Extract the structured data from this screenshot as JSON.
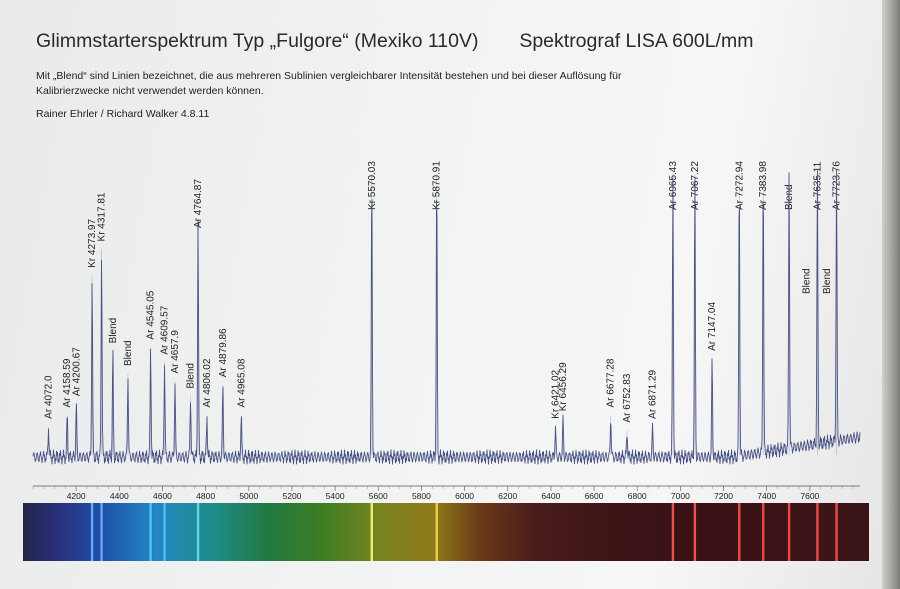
{
  "header": {
    "title": "Glimmstarterspektrum Typ „Fulgore“ (Mexiko 110V)",
    "spectrograph": "Spektrograf LISA 600L/mm",
    "note_line1": "Mit „Blend“ sind Linien bezeichnet, die aus mehreren Sublinien vergleichbarer Intensität bestehen und bei dieser Auflösung für",
    "note_line2": "Kalibrierzwecke nicht verwendet werden können.",
    "authors": "Rainer Ehrler / Richard Walker  4.8.11"
  },
  "chart_data": {
    "type": "line",
    "title": "",
    "xlabel": "",
    "ylabel": "",
    "xlim": [
      4000,
      7800
    ],
    "x_ticks": [
      4200,
      4400,
      4600,
      4800,
      5000,
      5200,
      5400,
      5600,
      5800,
      6000,
      6200,
      6400,
      6600,
      6800,
      7000,
      7200,
      7400,
      7600
    ],
    "grid": false,
    "legend": "none",
    "line_color": "#4a5385",
    "baseline": 0.03,
    "peaks": [
      {
        "x": 4072.0,
        "y": 0.08
      },
      {
        "x": 4158.59,
        "y": 0.11
      },
      {
        "x": 4200.67,
        "y": 0.14
      },
      {
        "x": 4273.97,
        "y": 0.48
      },
      {
        "x": 4317.81,
        "y": 0.55
      },
      {
        "x": 4370,
        "y": 0.28
      },
      {
        "x": 4440,
        "y": 0.22
      },
      {
        "x": 4545.05,
        "y": 0.29
      },
      {
        "x": 4609.57,
        "y": 0.25
      },
      {
        "x": 4657.9,
        "y": 0.2
      },
      {
        "x": 4730,
        "y": 0.16
      },
      {
        "x": 4764.87,
        "y": 0.63
      },
      {
        "x": 4806.02,
        "y": 0.11
      },
      {
        "x": 4879.86,
        "y": 0.19
      },
      {
        "x": 4965.08,
        "y": 0.11
      },
      {
        "x": 5570.03,
        "y": 0.75
      },
      {
        "x": 5870.91,
        "y": 0.75
      },
      {
        "x": 6421.02,
        "y": 0.08
      },
      {
        "x": 6456.29,
        "y": 0.1
      },
      {
        "x": 6677.28,
        "y": 0.11
      },
      {
        "x": 6752.83,
        "y": 0.07
      },
      {
        "x": 6871.29,
        "y": 0.08
      },
      {
        "x": 6965.43,
        "y": 0.75
      },
      {
        "x": 7067.22,
        "y": 0.75
      },
      {
        "x": 7147.04,
        "y": 0.26
      },
      {
        "x": 7272.94,
        "y": 0.75
      },
      {
        "x": 7383.98,
        "y": 0.75
      },
      {
        "x": 7503.87,
        "y": 0.75
      },
      {
        "x": 7635.11,
        "y": 0.75
      },
      {
        "x": 7723.76,
        "y": 0.75
      }
    ],
    "annotations": [
      {
        "text": "Ar 4072.0",
        "x": 4072.0
      },
      {
        "text": "Ar 4158.59",
        "x": 4158.59
      },
      {
        "text": "Ar 4200.67",
        "x": 4200.67
      },
      {
        "text": "Kr 4273.97",
        "x": 4273.97
      },
      {
        "text": "Kr 4317.81",
        "x": 4317.81
      },
      {
        "text": "Blend",
        "x": 4370
      },
      {
        "text": "Blend",
        "x": 4440
      },
      {
        "text": "Ar 4545.05",
        "x": 4545.05
      },
      {
        "text": "Ar 4609.57",
        "x": 4609.57
      },
      {
        "text": "Ar 4657.9",
        "x": 4657.9
      },
      {
        "text": "Blend",
        "x": 4730
      },
      {
        "text": "Ar 4764.87",
        "x": 4764.87
      },
      {
        "text": "Ar 4806.02",
        "x": 4806.02
      },
      {
        "text": "Ar 4879.86",
        "x": 4879.86
      },
      {
        "text": "Ar 4965.08",
        "x": 4965.08
      },
      {
        "text": "Kr 5570.03",
        "x": 5570.03
      },
      {
        "text": "Kr 5870.91",
        "x": 5870.91
      },
      {
        "text": "Kr 6421.02",
        "x": 6421.02
      },
      {
        "text": "Kr 6456.29",
        "x": 6456.29
      },
      {
        "text": "Ar 6677.28",
        "x": 6677.28
      },
      {
        "text": "Ar 6752.83",
        "x": 6752.83
      },
      {
        "text": "Ar 6871.29",
        "x": 6871.29
      },
      {
        "text": "Ar 6965.43",
        "x": 6965.43
      },
      {
        "text": "Ar 7067.22",
        "x": 7067.22
      },
      {
        "text": "Ar 7147.04",
        "x": 7147.04
      },
      {
        "text": "Ar 7272.94",
        "x": 7272.94
      },
      {
        "text": "Ar 7383.98",
        "x": 7383.98
      },
      {
        "text": "Blend",
        "x": 7503.87
      },
      {
        "text": "Blend",
        "x": 7585
      },
      {
        "text": "Ar 7635.11",
        "x": 7635.11
      },
      {
        "text": "Blend",
        "x": 7680
      },
      {
        "text": "Ar 7723.76",
        "x": 7723.76
      }
    ],
    "color_strip": {
      "stops": [
        {
          "x": 4000,
          "color": "#22254a"
        },
        {
          "x": 4150,
          "color": "#2a2f7a"
        },
        {
          "x": 4350,
          "color": "#1f4fa8"
        },
        {
          "x": 4600,
          "color": "#2388c4"
        },
        {
          "x": 4850,
          "color": "#1f8b8a"
        },
        {
          "x": 5100,
          "color": "#1f7a42"
        },
        {
          "x": 5350,
          "color": "#3f7d22"
        },
        {
          "x": 5600,
          "color": "#7a8420"
        },
        {
          "x": 5850,
          "color": "#8e7a18"
        },
        {
          "x": 6050,
          "color": "#6a3a18"
        },
        {
          "x": 6300,
          "color": "#4a1c1c"
        },
        {
          "x": 6700,
          "color": "#3c1316"
        },
        {
          "x": 7100,
          "color": "#3a1216"
        },
        {
          "x": 7500,
          "color": "#3c1418"
        },
        {
          "x": 7800,
          "color": "#3a1418"
        }
      ],
      "bright_lines": [
        {
          "x": 4273.97,
          "color": "#6fb0ff"
        },
        {
          "x": 4317.81,
          "color": "#6fb0ff"
        },
        {
          "x": 4545.05,
          "color": "#4fc6ff"
        },
        {
          "x": 4609.57,
          "color": "#4fc6ff"
        },
        {
          "x": 4764.87,
          "color": "#5fe0e6"
        },
        {
          "x": 5570.03,
          "color": "#f4ff7a"
        },
        {
          "x": 5870.91,
          "color": "#ffd84a"
        },
        {
          "x": 6965.43,
          "color": "#ff5a55"
        },
        {
          "x": 7067.22,
          "color": "#ff5a55"
        },
        {
          "x": 7272.94,
          "color": "#ff4e4e"
        },
        {
          "x": 7383.98,
          "color": "#ff4e4e"
        },
        {
          "x": 7503.87,
          "color": "#ff4e4e"
        },
        {
          "x": 7635.11,
          "color": "#ff5050"
        },
        {
          "x": 7723.76,
          "color": "#ff5050"
        }
      ]
    }
  }
}
